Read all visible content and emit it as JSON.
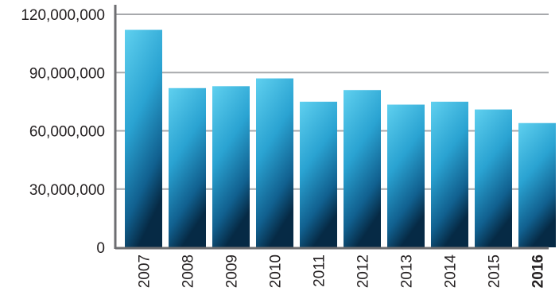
{
  "chart_data": {
    "type": "bar",
    "categories": [
      "2007",
      "2008",
      "2009",
      "2010",
      "2011",
      "2012",
      "2013",
      "2014",
      "2015",
      "2016"
    ],
    "values": [
      112000000,
      82000000,
      83000000,
      87000000,
      75000000,
      81000000,
      73500000,
      75000000,
      71000000,
      64000000
    ],
    "ylim": [
      0,
      120000000
    ],
    "y_ticks": [
      "0",
      "30,000,000",
      "60,000,000",
      "90,000,000",
      "120,000,000"
    ],
    "y_tick_values": [
      0,
      30000000,
      60000000,
      90000000,
      120000000
    ],
    "highlight_category": "2016",
    "grid": true,
    "colors": {
      "bar_light": "#4fc3e6",
      "bar_mid": "#1f8fbf",
      "bar_dark": "#0b3f63",
      "grid": "#a7a9ac",
      "axis": "#6d6e71",
      "text": "#231f20"
    }
  }
}
